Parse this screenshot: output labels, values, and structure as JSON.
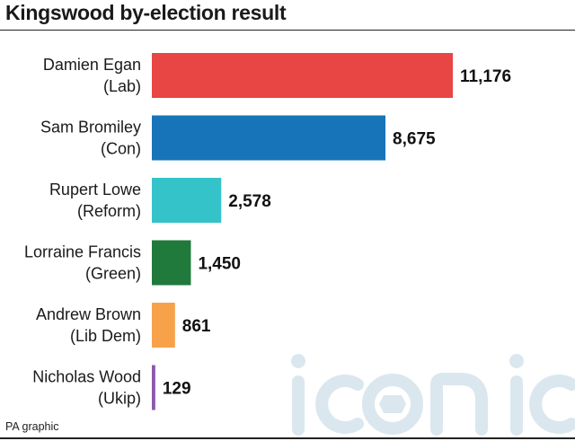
{
  "title": "Kingswood by-election result",
  "source": "PA graphic",
  "watermark": "iconic",
  "chart_data": {
    "type": "bar",
    "orientation": "horizontal",
    "title": "Kingswood by-election result",
    "categories": [
      {
        "name": "Damien Egan",
        "party": "(Lab)",
        "value_label": "11,176",
        "color": "#e84545"
      },
      {
        "name": "Sam Bromiley",
        "party": "(Con)",
        "value_label": "8,675",
        "color": "#1874b8"
      },
      {
        "name": "Rupert Lowe",
        "party": "(Reform)",
        "value_label": "2,578",
        "color": "#33c3c9"
      },
      {
        "name": "Lorraine Francis",
        "party": "(Green)",
        "value_label": "1,450",
        "color": "#1f7a3b"
      },
      {
        "name": "Andrew Brown",
        "party": "(Lib Dem)",
        "value_label": "861",
        "color": "#f7a24a"
      },
      {
        "name": "Nicholas Wood",
        "party": "(Ukip)",
        "value_label": "129",
        "color": "#8e5aa8"
      }
    ],
    "values": [
      11176,
      8675,
      2578,
      1450,
      861,
      129
    ],
    "xlim": [
      0,
      11176
    ],
    "grid": false,
    "legend": "none"
  }
}
